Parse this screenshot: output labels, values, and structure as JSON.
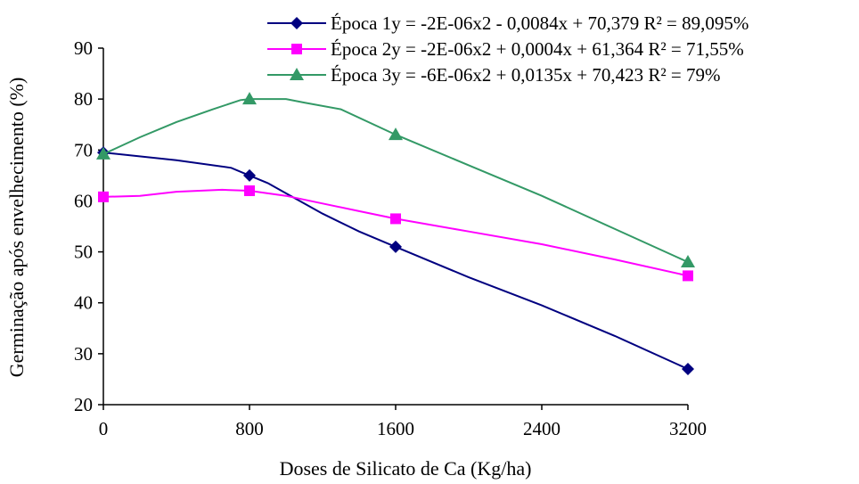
{
  "chart_data": {
    "type": "line",
    "xlabel": "Doses de Silicato de Ca (Kg/ha)",
    "ylabel": "Germinação após envelhecimento (%)",
    "xlim": [
      0,
      3200
    ],
    "ylim": [
      20,
      90
    ],
    "x_ticks": [
      0,
      800,
      1600,
      2400,
      3200
    ],
    "x_tick_labels": [
      "0",
      "800",
      "1600",
      "2400",
      "3200"
    ],
    "y_ticks": [
      20,
      30,
      40,
      50,
      60,
      70,
      80,
      90
    ],
    "y_tick_labels": [
      "20",
      "30",
      "40",
      "50",
      "60",
      "70",
      "80",
      "90"
    ],
    "grid": false,
    "legend_position": "top-right",
    "series": [
      {
        "name": "Época 1",
        "equation": "y = -2E-06x2 - 0,0084x + 70,379 R² = 89,095%",
        "color": "#000080",
        "marker": "diamond",
        "points": [
          [
            0,
            69.5
          ],
          [
            800,
            65
          ],
          [
            1600,
            51
          ],
          [
            3200,
            27
          ]
        ],
        "curve": [
          [
            0,
            69.5
          ],
          [
            400,
            68
          ],
          [
            700,
            66.5
          ],
          [
            800,
            65
          ],
          [
            900,
            63.5
          ],
          [
            1000,
            61.5
          ],
          [
            1200,
            57.5
          ],
          [
            1400,
            54
          ],
          [
            1600,
            51
          ],
          [
            2000,
            45
          ],
          [
            2400,
            39.5
          ],
          [
            2800,
            33.5
          ],
          [
            3200,
            27
          ]
        ]
      },
      {
        "name": "Época 2",
        "equation": "y = -2E-06x2 + 0,0004x + 61,364 R² = 71,55%",
        "color": "#ff00ff",
        "marker": "square",
        "points": [
          [
            0,
            60.8
          ],
          [
            800,
            62
          ],
          [
            1600,
            56.5
          ],
          [
            3200,
            45.3
          ]
        ],
        "curve": [
          [
            0,
            60.8
          ],
          [
            200,
            61
          ],
          [
            400,
            61.8
          ],
          [
            650,
            62.2
          ],
          [
            800,
            62
          ],
          [
            1000,
            61
          ],
          [
            1200,
            59.5
          ],
          [
            1400,
            58
          ],
          [
            1600,
            56.5
          ],
          [
            2000,
            54
          ],
          [
            2400,
            51.5
          ],
          [
            2800,
            48.5
          ],
          [
            3200,
            45.3
          ]
        ]
      },
      {
        "name": "Época 3",
        "equation": "y = -6E-06x2 + 0,0135x + 70,423 R² = 79%",
        "color": "#339966",
        "marker": "triangle",
        "points": [
          [
            0,
            69.2
          ],
          [
            800,
            80
          ],
          [
            1600,
            73
          ],
          [
            3200,
            48
          ]
        ],
        "curve": [
          [
            0,
            69.2
          ],
          [
            200,
            72.5
          ],
          [
            400,
            75.5
          ],
          [
            600,
            78
          ],
          [
            750,
            79.8
          ],
          [
            800,
            80
          ],
          [
            1000,
            80
          ],
          [
            1100,
            79.3
          ],
          [
            1300,
            78
          ],
          [
            1600,
            73
          ],
          [
            2000,
            67
          ],
          [
            2400,
            61
          ],
          [
            2800,
            54.5
          ],
          [
            3200,
            48
          ]
        ]
      }
    ]
  }
}
